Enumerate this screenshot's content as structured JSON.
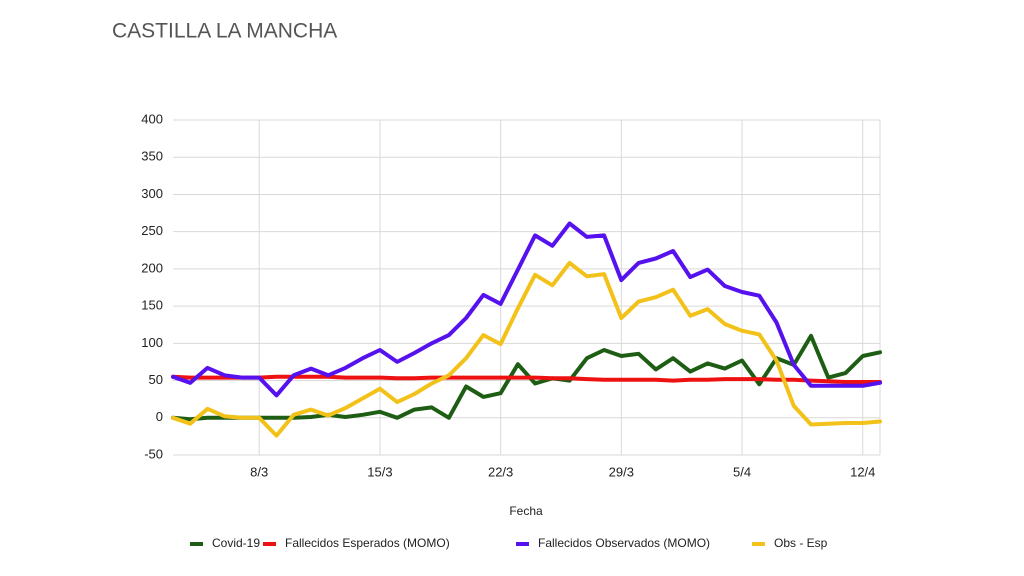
{
  "chart_data": {
    "type": "line",
    "title": "CASTILLA LA MANCHA",
    "x_label": "Fecha",
    "categories": [
      null,
      null,
      null,
      null,
      null,
      "8/3",
      null,
      null,
      null,
      null,
      null,
      null,
      "15/3",
      null,
      null,
      null,
      null,
      null,
      null,
      "22/3",
      null,
      null,
      null,
      null,
      null,
      null,
      "29/3",
      null,
      null,
      null,
      null,
      null,
      null,
      "5/4",
      null,
      null,
      null,
      null,
      null,
      null,
      "12/4",
      null
    ],
    "ylim": [
      -50,
      400
    ],
    "yticks": [
      -50,
      0,
      50,
      100,
      150,
      200,
      250,
      300,
      350,
      400
    ],
    "grid": true,
    "series": [
      {
        "name": "Covid-19",
        "color": "#1e5e14",
        "values": [
          0,
          -2,
          0,
          0,
          0,
          0,
          0,
          0,
          1,
          4,
          1,
          4,
          8,
          0,
          11,
          14,
          0,
          42,
          28,
          33,
          72,
          46,
          53,
          50,
          80,
          91,
          83,
          86,
          65,
          80,
          62,
          73,
          66,
          77,
          45,
          80,
          71,
          110,
          54,
          60,
          83,
          88
        ]
      },
      {
        "name": "Fallecidos Esperados (MOMO)",
        "color": "#ee1111",
        "values": [
          55,
          54,
          54,
          54,
          54,
          54,
          55,
          55,
          55,
          55,
          54,
          54,
          54,
          53,
          53,
          54,
          54,
          54,
          54,
          54,
          54,
          54,
          53,
          53,
          52,
          51,
          51,
          51,
          51,
          50,
          51,
          51,
          52,
          52,
          52,
          51,
          51,
          50,
          49,
          48,
          48,
          48
        ]
      },
      {
        "name": "Fallecidos Observados (MOMO)",
        "color": "#5511ee",
        "values": [
          55,
          47,
          67,
          57,
          54,
          54,
          30,
          57,
          66,
          57,
          67,
          80,
          91,
          75,
          87,
          100,
          111,
          134,
          165,
          153,
          199,
          245,
          231,
          261,
          243,
          245,
          185,
          208,
          214,
          224,
          189,
          199,
          177,
          169,
          164,
          128,
          71,
          43,
          43,
          43,
          43,
          47
        ]
      },
      {
        "name": "Obs - Esp",
        "color": "#f2c21b",
        "values": [
          0,
          -8,
          12,
          2,
          0,
          0,
          -24,
          4,
          11,
          3,
          13,
          26,
          39,
          21,
          32,
          46,
          57,
          80,
          111,
          99,
          147,
          192,
          178,
          208,
          190,
          193,
          134,
          156,
          162,
          172,
          137,
          146,
          126,
          117,
          112,
          77,
          16,
          -9,
          -8,
          -7,
          -7,
          -5
        ]
      }
    ]
  }
}
